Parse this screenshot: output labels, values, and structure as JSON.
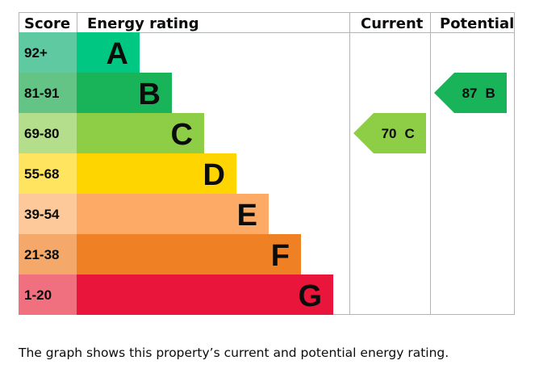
{
  "chart_data": {
    "type": "table",
    "headers": {
      "score": "Score",
      "rating": "Energy rating",
      "current": "Current",
      "potential": "Potential"
    },
    "bands": [
      {
        "score": "92+",
        "letter": "A",
        "color": "#00c781",
        "scoreColor": "#5fc9a2"
      },
      {
        "score": "81-91",
        "letter": "B",
        "color": "#19b459",
        "scoreColor": "#63c486"
      },
      {
        "score": "69-80",
        "letter": "C",
        "color": "#8dce46",
        "scoreColor": "#b4de8b"
      },
      {
        "score": "55-68",
        "letter": "D",
        "color": "#ffd500",
        "scoreColor": "#ffe45f"
      },
      {
        "score": "39-54",
        "letter": "E",
        "color": "#fcaa65",
        "scoreColor": "#fdc89a"
      },
      {
        "score": "21-38",
        "letter": "F",
        "color": "#ef8023",
        "scoreColor": "#f4a96a"
      },
      {
        "score": "1-20",
        "letter": "G",
        "color": "#e9153b",
        "scoreColor": "#f0707f"
      }
    ],
    "current": {
      "value": 70,
      "letter": "C",
      "band": "C",
      "color": "#8dce46"
    },
    "potential": {
      "value": 87,
      "letter": "B",
      "band": "B",
      "color": "#19b459"
    }
  },
  "caption": "The graph shows this property’s current and potential energy rating."
}
